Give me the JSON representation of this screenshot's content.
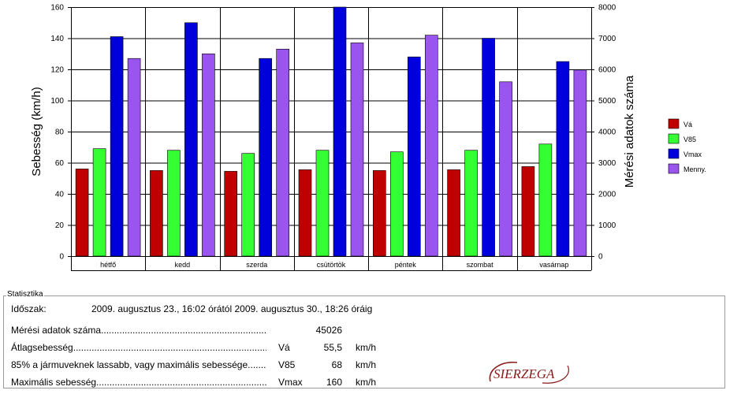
{
  "chart_data": {
    "type": "bar",
    "categories": [
      "hétfő",
      "kedd",
      "szerda",
      "csütörtök",
      "péntek",
      "szombat",
      "vasárnap"
    ],
    "series": [
      {
        "name": "Vá",
        "color": "#c00000",
        "axis": "left",
        "values": [
          56,
          55,
          54.5,
          55.5,
          55,
          55.5,
          57.5
        ]
      },
      {
        "name": "V85",
        "color": "#33ff33",
        "axis": "left",
        "values": [
          69,
          68,
          66,
          68,
          67,
          68,
          72
        ]
      },
      {
        "name": "Vmax",
        "color": "#0000dd",
        "axis": "left",
        "values": [
          141,
          150,
          127,
          160,
          128,
          140,
          125
        ]
      },
      {
        "name": "Menny.",
        "color": "#9955ee",
        "axis": "right",
        "values": [
          6350,
          6500,
          6650,
          6850,
          7100,
          5600,
          5980
        ]
      }
    ],
    "ylabel": "Sebesség (km/h)",
    "y2label": "Mérési adatok száma",
    "ylim": [
      0,
      160
    ],
    "y2lim": [
      0,
      8000
    ],
    "yticks": [
      "0",
      "20",
      "40",
      "60",
      "80",
      "100",
      "120",
      "140",
      "160"
    ],
    "y2ticks": [
      "0",
      "1000",
      "2000",
      "3000",
      "4000",
      "5000",
      "6000",
      "7000",
      "8000"
    ],
    "legend_position": "right",
    "grid": true
  },
  "stats": {
    "section_title": "Statisztika",
    "period_label": "Időszak:",
    "period_value": "2009. augusztus 23., 16:02 órától 2009. augusztus 30., 18:26 óráig",
    "rows": [
      {
        "label": "Mérési adatok száma",
        "symbol": "",
        "value": "45026",
        "unit": ""
      },
      {
        "label": "Átlagsebesség",
        "symbol": "Vá",
        "value": "55,5",
        "unit": "km/h"
      },
      {
        "label": "85% a jármuveknek lassabb, vagy maximális sebessége",
        "symbol": "V85",
        "value": "68",
        "unit": "km/h"
      },
      {
        "label": "Maximális sebesség",
        "symbol": "Vmax",
        "value": "160",
        "unit": "km/h"
      }
    ]
  },
  "logo_text": "SIERZEGA"
}
